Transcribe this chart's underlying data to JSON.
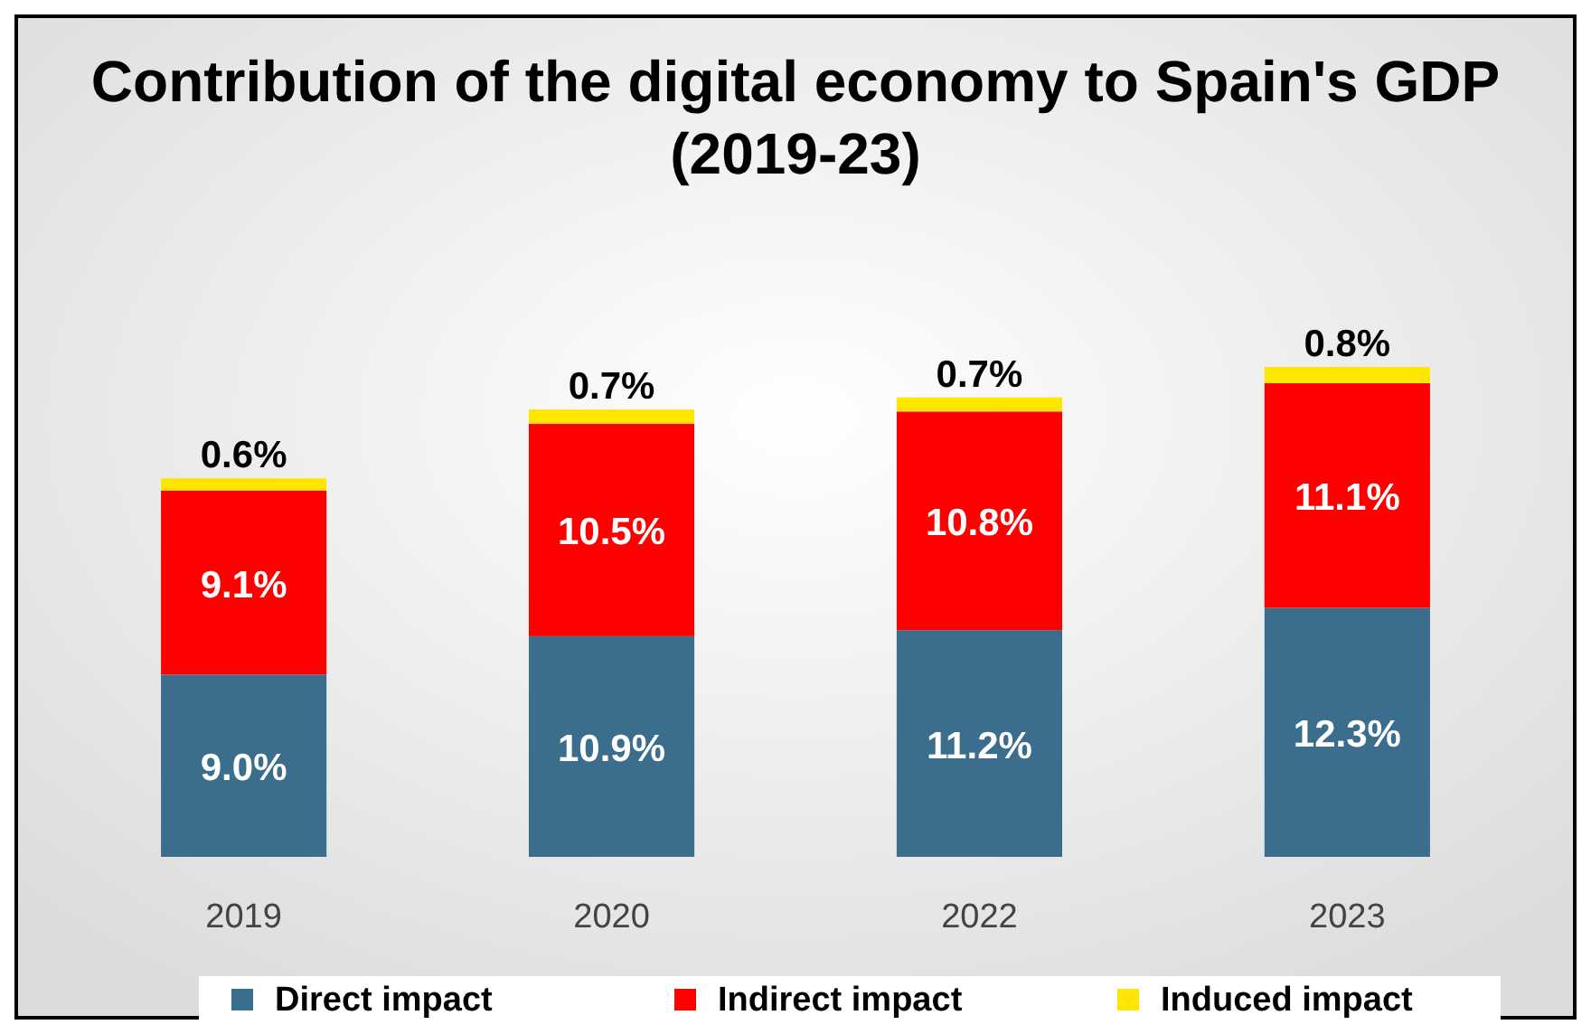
{
  "chart_data": {
    "type": "bar",
    "title": "Contribution of the digital economy to Spain's GDP (2019-23)",
    "categories": [
      "2019",
      "2020",
      "2022",
      "2023"
    ],
    "stacked": true,
    "legend": "bottom",
    "series": [
      {
        "name": "Direct impact",
        "color": "#3b6e8c",
        "values": [
          9.0,
          10.9,
          11.2,
          12.3
        ],
        "value_labels": [
          "9.0%",
          "10.9%",
          "11.2%",
          "12.3%"
        ]
      },
      {
        "name": "Indirect impact",
        "color": "#ff0000",
        "values": [
          9.1,
          10.5,
          10.8,
          11.1
        ],
        "value_labels": [
          "9.1%",
          "10.5%",
          "10.8%",
          "11.1%"
        ]
      },
      {
        "name": "Induced impact",
        "color": "#ffe600",
        "values": [
          0.6,
          0.7,
          0.7,
          0.8
        ],
        "value_labels": [
          "0.6%",
          "0.7%",
          "0.7%",
          "0.8%"
        ]
      }
    ]
  }
}
